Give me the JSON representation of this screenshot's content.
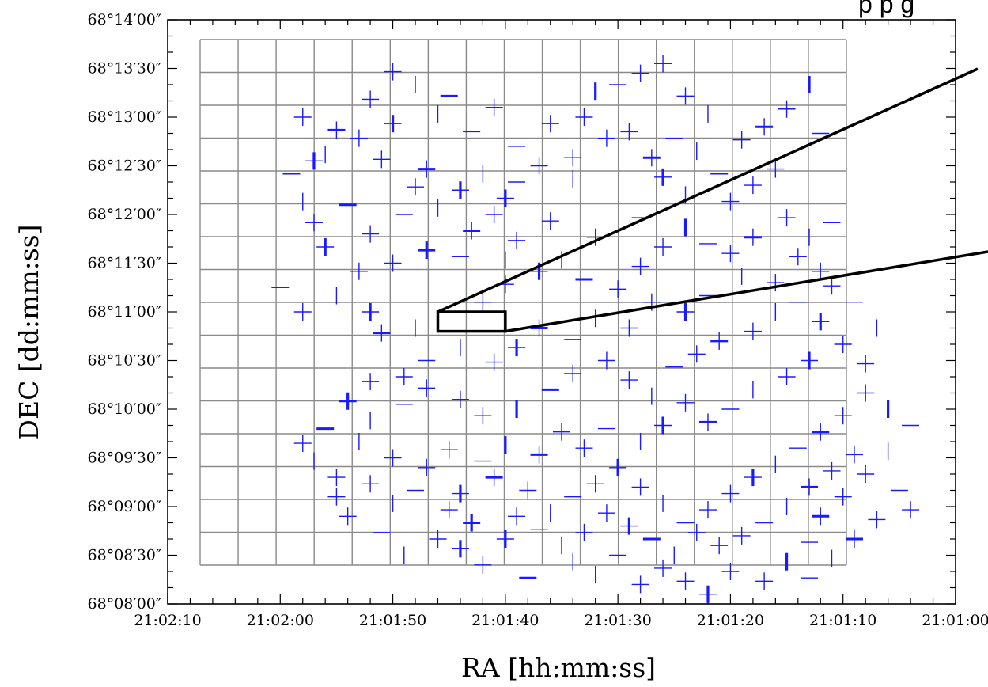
{
  "chart_data": {
    "type": "scatter",
    "title": "",
    "partial_top_text": "p    p    g",
    "xlabel": "RA [hh:mm:ss]",
    "ylabel": "DEC [dd:mm:ss]",
    "x_ticks": [
      "21:02:10",
      "21:02:00",
      "21:01:50",
      "21:01:40",
      "21:01:30",
      "21:01:20",
      "21:01:10",
      "21:01:00"
    ],
    "y_ticks": [
      "68°14′00″",
      "68°13′30″",
      "68°13′00″",
      "68°12′30″",
      "68°12′00″",
      "68°11′30″",
      "68°11′00″",
      "68°10′30″",
      "68°10′00″",
      "68°09′30″",
      "68°09′00″",
      "68°08′30″",
      "68°08′00″"
    ],
    "xlim_seconds_before_21h02m10s": [
      0,
      70
    ],
    "ylim_arcsec_above_68d08m00s": [
      0,
      360
    ],
    "grid": true,
    "marker": "cross",
    "marker_color": "#1a1aff",
    "frame_color": "#000000",
    "grid_color": "#888888",
    "points_note": "x = seconds after 21:02:10 going toward 21:01:00; y = arcsec above 68°08′00″",
    "points": [
      [
        12,
        300
      ],
      [
        15,
        292
      ],
      [
        14,
        277
      ],
      [
        11,
        265
      ],
      [
        13,
        273
      ],
      [
        18,
        311
      ],
      [
        20,
        328
      ],
      [
        22,
        320
      ],
      [
        25,
        313
      ],
      [
        17,
        287
      ],
      [
        20,
        296
      ],
      [
        19,
        274
      ],
      [
        24,
        302
      ],
      [
        27,
        291
      ],
      [
        29,
        306
      ],
      [
        23,
        268
      ],
      [
        26,
        255
      ],
      [
        28,
        265
      ],
      [
        31,
        282
      ],
      [
        33,
        270
      ],
      [
        34,
        296
      ],
      [
        37,
        300
      ],
      [
        38,
        316
      ],
      [
        40,
        320
      ],
      [
        42,
        327
      ],
      [
        44,
        333
      ],
      [
        46,
        313
      ],
      [
        48,
        302
      ],
      [
        45,
        287
      ],
      [
        43,
        275
      ],
      [
        39,
        287
      ],
      [
        36,
        275
      ],
      [
        36,
        262
      ],
      [
        31,
        260
      ],
      [
        30,
        250
      ],
      [
        29,
        240
      ],
      [
        27,
        230
      ],
      [
        24,
        244
      ],
      [
        21,
        240
      ],
      [
        18,
        228
      ],
      [
        14,
        220
      ],
      [
        13,
        235
      ],
      [
        12,
        248
      ],
      [
        16,
        246
      ],
      [
        22,
        257
      ],
      [
        41,
        291
      ],
      [
        44,
        263
      ],
      [
        47,
        279
      ],
      [
        49,
        265
      ],
      [
        51,
        286
      ],
      [
        53,
        294
      ],
      [
        55,
        305
      ],
      [
        57,
        320
      ],
      [
        58,
        290
      ],
      [
        54,
        268
      ],
      [
        52,
        258
      ],
      [
        50,
        248
      ],
      [
        46,
        252
      ],
      [
        42,
        238
      ],
      [
        38,
        226
      ],
      [
        34,
        236
      ],
      [
        31,
        224
      ],
      [
        30,
        212
      ],
      [
        26,
        214
      ],
      [
        23,
        218
      ],
      [
        20,
        210
      ],
      [
        17,
        205
      ],
      [
        15,
        190
      ],
      [
        10,
        195
      ],
      [
        12,
        180
      ],
      [
        18,
        180
      ],
      [
        19,
        167
      ],
      [
        22,
        170
      ],
      [
        25,
        180
      ],
      [
        28,
        186
      ],
      [
        30,
        197
      ],
      [
        33,
        205
      ],
      [
        35,
        212
      ],
      [
        37,
        200
      ],
      [
        40,
        194
      ],
      [
        42,
        208
      ],
      [
        44,
        220
      ],
      [
        46,
        232
      ],
      [
        48,
        222
      ],
      [
        50,
        216
      ],
      [
        52,
        226
      ],
      [
        55,
        238
      ],
      [
        57,
        226
      ],
      [
        59,
        235
      ],
      [
        58,
        205
      ],
      [
        56,
        214
      ],
      [
        54,
        198
      ],
      [
        51,
        202
      ],
      [
        48,
        190
      ],
      [
        46,
        180
      ],
      [
        43,
        186
      ],
      [
        41,
        170
      ],
      [
        38,
        176
      ],
      [
        36,
        163
      ],
      [
        33,
        170
      ],
      [
        31,
        158
      ],
      [
        29,
        149
      ],
      [
        26,
        158
      ],
      [
        23,
        150
      ],
      [
        21,
        140
      ],
      [
        18,
        137
      ],
      [
        16,
        125
      ],
      [
        18,
        113
      ],
      [
        21,
        123
      ],
      [
        23,
        133
      ],
      [
        26,
        126
      ],
      [
        28,
        116
      ],
      [
        31,
        120
      ],
      [
        34,
        132
      ],
      [
        36,
        142
      ],
      [
        39,
        150
      ],
      [
        41,
        138
      ],
      [
        43,
        128
      ],
      [
        45,
        146
      ],
      [
        47,
        154
      ],
      [
        49,
        162
      ],
      [
        52,
        168
      ],
      [
        54,
        180
      ],
      [
        56,
        186
      ],
      [
        58,
        174
      ],
      [
        60,
        160
      ],
      [
        62,
        148
      ],
      [
        63,
        170
      ],
      [
        61,
        186
      ],
      [
        59,
        196
      ],
      [
        57,
        150
      ],
      [
        55,
        140
      ],
      [
        52,
        132
      ],
      [
        50,
        120
      ],
      [
        48,
        112
      ],
      [
        46,
        124
      ],
      [
        44,
        110
      ],
      [
        42,
        100
      ],
      [
        39,
        108
      ],
      [
        37,
        96
      ],
      [
        35,
        106
      ],
      [
        33,
        92
      ],
      [
        30,
        98
      ],
      [
        28,
        88
      ],
      [
        25,
        95
      ],
      [
        23,
        84
      ],
      [
        20,
        90
      ],
      [
        17,
        100
      ],
      [
        14,
        108
      ],
      [
        12,
        99
      ],
      [
        15,
        78
      ],
      [
        18,
        74
      ],
      [
        20,
        62
      ],
      [
        22,
        70
      ],
      [
        26,
        68
      ],
      [
        29,
        78
      ],
      [
        32,
        70
      ],
      [
        34,
        56
      ],
      [
        36,
        66
      ],
      [
        38,
        74
      ],
      [
        40,
        84
      ],
      [
        42,
        72
      ],
      [
        44,
        62
      ],
      [
        46,
        50
      ],
      [
        48,
        58
      ],
      [
        50,
        68
      ],
      [
        52,
        78
      ],
      [
        54,
        86
      ],
      [
        56,
        96
      ],
      [
        58,
        106
      ],
      [
        60,
        116
      ],
      [
        62,
        130
      ],
      [
        64,
        120
      ],
      [
        66,
        110
      ],
      [
        61,
        92
      ],
      [
        59,
        82
      ],
      [
        57,
        72
      ],
      [
        55,
        60
      ],
      [
        53,
        50
      ],
      [
        51,
        42
      ],
      [
        49,
        36
      ],
      [
        47,
        44
      ],
      [
        45,
        30
      ],
      [
        43,
        40
      ],
      [
        41,
        48
      ],
      [
        39,
        56
      ],
      [
        37,
        44
      ],
      [
        35,
        36
      ],
      [
        33,
        46
      ],
      [
        31,
        54
      ],
      [
        27,
        50
      ],
      [
        24,
        40
      ],
      [
        21,
        30
      ],
      [
        19,
        44
      ],
      [
        16,
        54
      ],
      [
        25,
        58
      ],
      [
        30,
        40
      ],
      [
        36,
        26
      ],
      [
        40,
        30
      ],
      [
        44,
        22
      ],
      [
        50,
        20
      ],
      [
        53,
        14
      ],
      [
        55,
        26
      ],
      [
        57,
        38
      ],
      [
        58,
        54
      ],
      [
        60,
        66
      ],
      [
        62,
        80
      ],
      [
        64,
        94
      ],
      [
        65,
        70
      ],
      [
        66,
        58
      ],
      [
        63,
        52
      ],
      [
        61,
        40
      ],
      [
        59,
        28
      ],
      [
        57,
        16
      ],
      [
        48,
        6
      ],
      [
        46,
        14
      ],
      [
        42,
        12
      ],
      [
        38,
        18
      ],
      [
        32,
        16
      ],
      [
        28,
        24
      ],
      [
        26,
        34
      ],
      [
        15,
        66
      ],
      [
        13,
        88
      ]
    ]
  },
  "zoom_box": {
    "ra_range_seconds": [
      24,
      30
    ],
    "dec_range_arcsec": [
      168,
      180
    ]
  }
}
